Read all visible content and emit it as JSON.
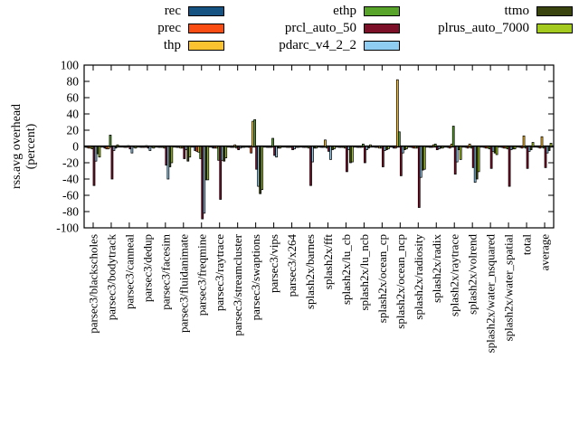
{
  "figure": {
    "ylabel_line1": "rss.avg overhead",
    "ylabel_line2": "(percent)"
  },
  "chart_data": {
    "type": "bar",
    "title": "",
    "xlabel": "",
    "ylabel": "rss.avg overhead (percent)",
    "ylim": [
      -100,
      100
    ],
    "ytick_step": 20,
    "grid": false,
    "legend_position": "top",
    "legend_columns": [
      [
        "rec",
        "prec",
        "thp"
      ],
      [
        "ethp",
        "prcl_auto_50",
        "pdarc_v4_2_2"
      ],
      [
        "ttmo",
        "plrus_auto_7000"
      ]
    ],
    "categories": [
      "parsec3/blackscholes",
      "parsec3/bodytrack",
      "parsec3/canneal",
      "parsec3/dedup",
      "parsec3/facesim",
      "parsec3/fluidanimate",
      "parsec3/freqmine",
      "parsec3/raytrace",
      "parsec3/streamcluster",
      "parsec3/swaptions",
      "parsec3/vips",
      "parsec3/x264",
      "splash2x/barnes",
      "splash2x/fft",
      "splash2x/lu_cb",
      "splash2x/lu_ncb",
      "splash2x/ocean_cp",
      "splash2x/ocean_ncp",
      "splash2x/radiosity",
      "splash2x/radix",
      "splash2x/raytrace",
      "splash2x/volrend",
      "splash2x/water_nsquared",
      "splash2x/water_spatial",
      "total",
      "average"
    ],
    "series": [
      {
        "name": "rec",
        "color": "#175382",
        "values": [
          -1,
          -2,
          0,
          -1,
          -1,
          -1,
          -5,
          -2,
          -1,
          -1,
          -1,
          0,
          -1,
          -1,
          -1,
          -1,
          -1,
          -2,
          -1,
          -1,
          -1,
          -1,
          -1,
          -1,
          -1,
          -1
        ]
      },
      {
        "name": "prec",
        "color": "#f94d13",
        "values": [
          -2,
          -3,
          -1,
          -1,
          -1,
          -1,
          -6,
          -2,
          -1,
          -8,
          -1,
          -1,
          -1,
          -1,
          -1,
          -1,
          -1,
          -2,
          -2,
          -1,
          -2,
          -2,
          -2,
          -2,
          -2,
          -2
        ]
      },
      {
        "name": "thp",
        "color": "#fcc331",
        "values": [
          -2,
          -3,
          -1,
          -1,
          -1,
          -2,
          -7,
          -2,
          2,
          31,
          -1,
          -1,
          -1,
          8,
          -1,
          -1,
          -2,
          82,
          -2,
          2,
          3,
          3,
          -2,
          -2,
          13,
          12
        ]
      },
      {
        "name": "ethp",
        "color": "#58a32a",
        "values": [
          -3,
          14,
          1,
          1,
          -2,
          -2,
          -15,
          -17,
          -2,
          33,
          10,
          -1,
          -2,
          -2,
          -2,
          3,
          -2,
          18,
          -2,
          3,
          25,
          -2,
          -3,
          -3,
          -2,
          -2
        ]
      },
      {
        "name": "prcl_auto_50",
        "color": "#7d1029",
        "values": [
          -48,
          -40,
          -3,
          -2,
          -23,
          -15,
          -89,
          -65,
          -4,
          -28,
          -11,
          -4,
          -48,
          -6,
          -31,
          -20,
          -25,
          -36,
          -75,
          -4,
          -34,
          -26,
          -27,
          -49,
          -27,
          -26
        ]
      },
      {
        "name": "pdarc_v4_2_2",
        "color": "#90cdf2",
        "values": [
          -18,
          -5,
          -8,
          -5,
          -40,
          -4,
          -82,
          -17,
          -2,
          -49,
          -13,
          -3,
          -19,
          -16,
          -4,
          -4,
          -5,
          -8,
          -38,
          -3,
          -19,
          -44,
          -6,
          -4,
          -6,
          -8
        ]
      },
      {
        "name": "ttmo",
        "color": "#3a440e",
        "values": [
          -9,
          -2,
          -1,
          -1,
          -25,
          -18,
          -41,
          -18,
          -1,
          -58,
          -2,
          -1,
          -2,
          -4,
          -20,
          -2,
          -4,
          -4,
          -29,
          -2,
          -4,
          -40,
          -8,
          -3,
          -4,
          -5
        ]
      },
      {
        "name": "plrus_auto_7000",
        "color": "#a4ca1f",
        "values": [
          -13,
          2,
          -2,
          -2,
          -20,
          -13,
          -41,
          -14,
          -1,
          -53,
          -2,
          -1,
          -2,
          -3,
          -19,
          2,
          -3,
          -3,
          -28,
          -2,
          -16,
          -31,
          -10,
          -3,
          5,
          4
        ]
      }
    ]
  }
}
